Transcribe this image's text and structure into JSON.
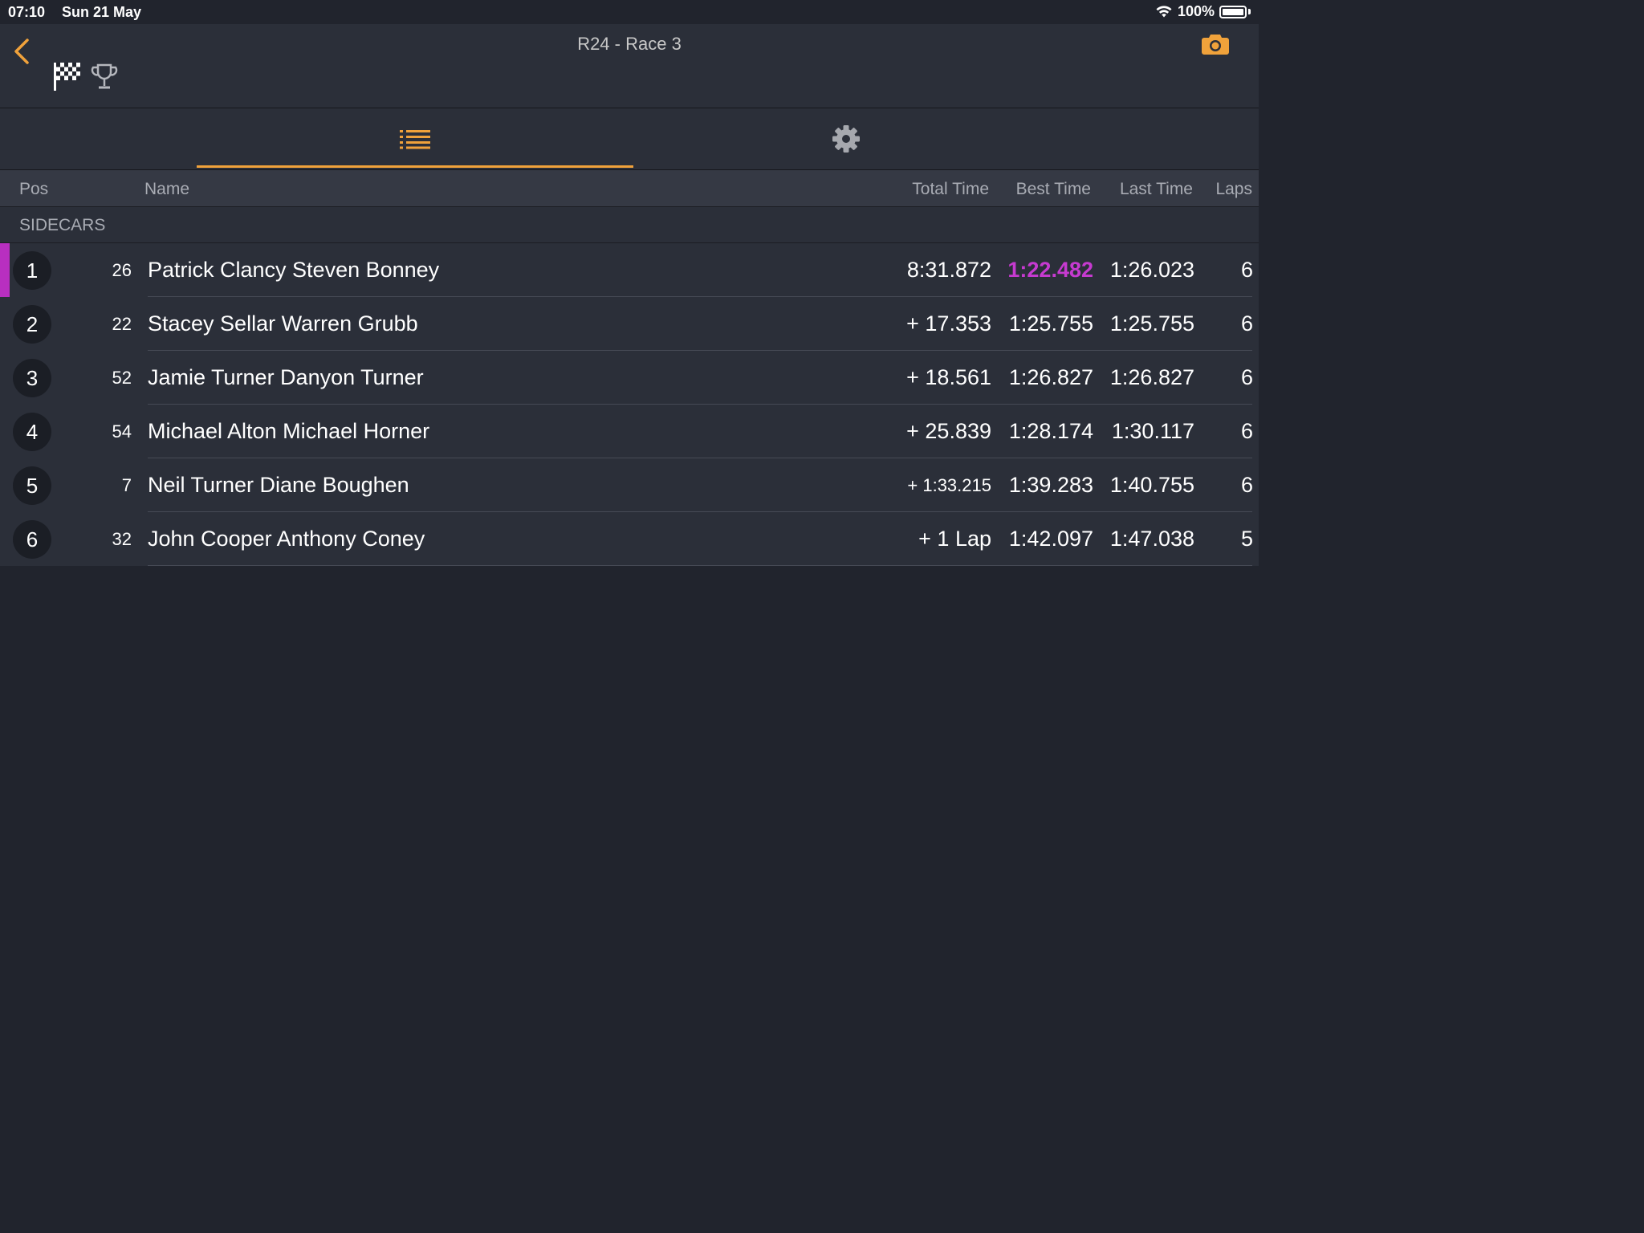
{
  "status": {
    "time": "07:10",
    "date": "Sun 21 May",
    "battery": "100%"
  },
  "header": {
    "title": "R24 - Race 3"
  },
  "table": {
    "columns": {
      "pos": "Pos",
      "name": "Name",
      "total": "Total Time",
      "best": "Best Time",
      "last": "Last Time",
      "laps": "Laps"
    },
    "group": "SIDECARS",
    "rows": [
      {
        "pos": "1",
        "num": "26",
        "name": "Patrick Clancy Steven Bonney",
        "total": "8:31.872",
        "best": "1:22.482",
        "last": "1:26.023",
        "laps": "6"
      },
      {
        "pos": "2",
        "num": "22",
        "name": "Stacey Sellar Warren Grubb",
        "total": "+ 17.353",
        "best": "1:25.755",
        "last": "1:25.755",
        "laps": "6"
      },
      {
        "pos": "3",
        "num": "52",
        "name": "Jamie Turner Danyon Turner",
        "total": "+ 18.561",
        "best": "1:26.827",
        "last": "1:26.827",
        "laps": "6"
      },
      {
        "pos": "4",
        "num": "54",
        "name": "Michael Alton Michael Horner",
        "total": "+ 25.839",
        "best": "1:28.174",
        "last": "1:30.117",
        "laps": "6"
      },
      {
        "pos": "5",
        "num": "7",
        "name": "Neil Turner Diane Boughen",
        "total": "+ 1:33.215",
        "best": "1:39.283",
        "last": "1:40.755",
        "laps": "6"
      },
      {
        "pos": "6",
        "num": "32",
        "name": "John Cooper Anthony Coney",
        "total": "+ 1 Lap",
        "best": "1:42.097",
        "last": "1:47.038",
        "laps": "5"
      }
    ]
  },
  "colors": {
    "accent": "#f0a23b",
    "fastest": "#c63ad0",
    "background": "#21242d",
    "panel": "#2b2f39"
  },
  "icons": [
    "back-chevron-icon",
    "checkered-flag-icon",
    "trophy-icon",
    "camera-icon",
    "list-icon",
    "gear-icon",
    "wifi-icon",
    "battery-icon"
  ]
}
